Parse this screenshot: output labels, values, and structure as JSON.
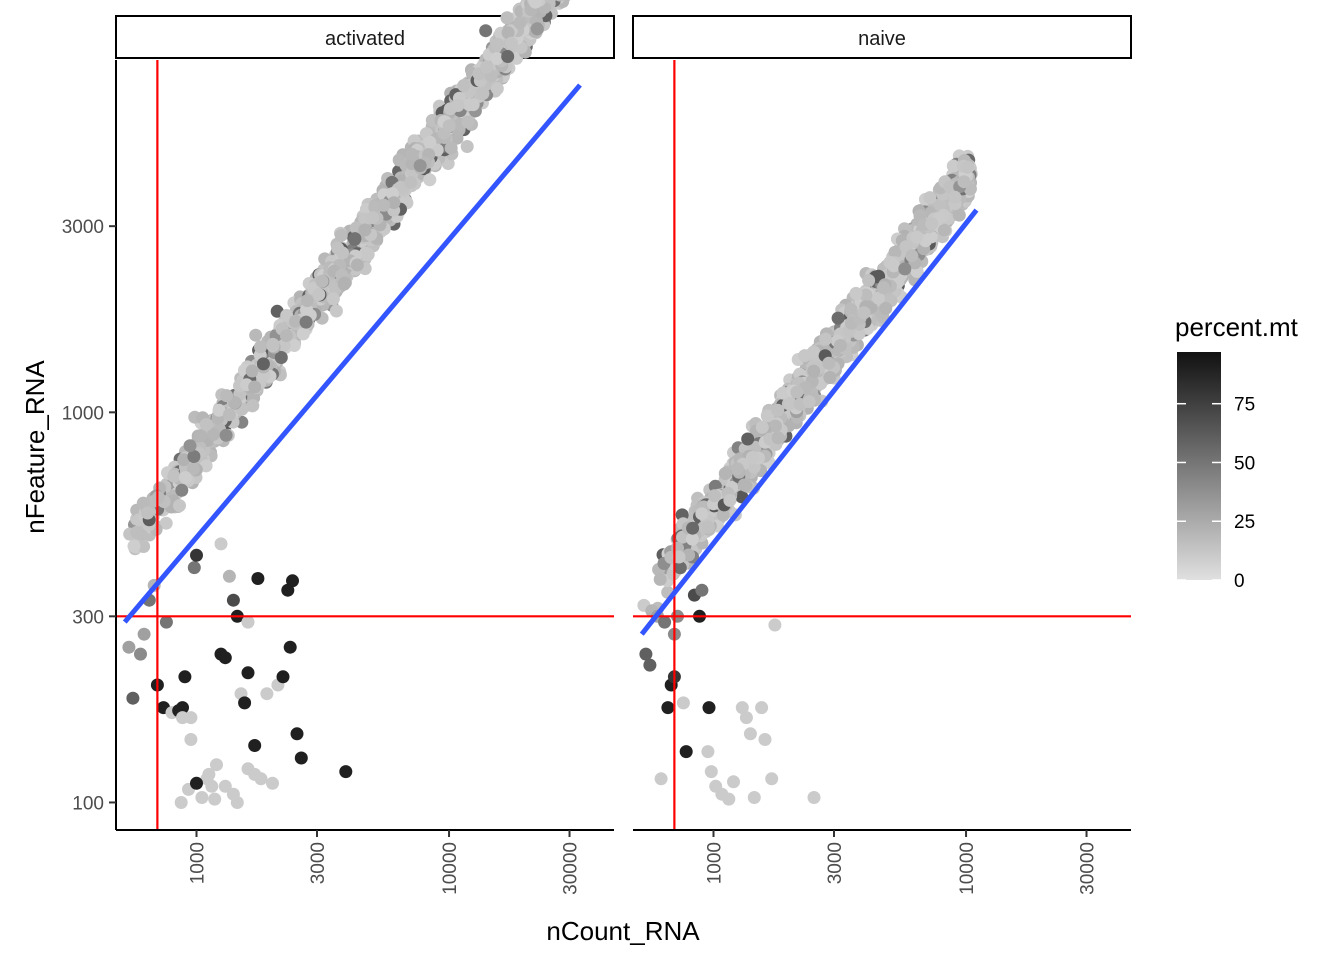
{
  "chart_data": {
    "type": "scatter",
    "title": "",
    "xlabel": "nCount_RNA",
    "ylabel": "nFeature_RNA",
    "x_scale": "log10",
    "y_scale": "log10",
    "xlim": [
      480,
      45000
    ],
    "ylim": [
      85,
      8000
    ],
    "x_ticks": [
      1000,
      3000,
      10000,
      30000
    ],
    "x_tick_labels": [
      "1000",
      "3000",
      "10000",
      "30000"
    ],
    "y_ticks": [
      100,
      300,
      1000,
      3000
    ],
    "y_tick_labels": [
      "100",
      "300",
      "1000",
      "3000"
    ],
    "grid": false,
    "threshold_lines": {
      "x": 700,
      "y": 300,
      "color": "#ff0000"
    },
    "trend_color": "#3355ff",
    "legend": {
      "title": "percent.mt",
      "placement": "right",
      "min": 0,
      "max": 97,
      "ticks": [
        0,
        25,
        50,
        75
      ],
      "tick_labels": [
        "0",
        "25",
        "50",
        "75"
      ],
      "color_low": "#e0e0e0",
      "color_high": "#111111"
    },
    "facets": [
      {
        "label": "activated",
        "trend": {
          "x": [
            520,
            33000
          ],
          "y": [
            290,
            6900
          ]
        },
        "band": {
          "x_range": [
            540,
            33000
          ],
          "slope": 0.85,
          "intercept_at_1000": 760,
          "spread": 0.14,
          "count": 1800
        },
        "outliers": [
          [
            540,
            250,
            30
          ],
          [
            560,
            185,
            60
          ],
          [
            600,
            240,
            40
          ],
          [
            620,
            270,
            30
          ],
          [
            650,
            330,
            50
          ],
          [
            680,
            360,
            20
          ],
          [
            700,
            200,
            90
          ],
          [
            740,
            175,
            90
          ],
          [
            760,
            290,
            50
          ],
          [
            800,
            170,
            10
          ],
          [
            850,
            172,
            90
          ],
          [
            880,
            175,
            90
          ],
          [
            880,
            165,
            10
          ],
          [
            900,
            210,
            90
          ],
          [
            950,
            165,
            10
          ],
          [
            950,
            145,
            10
          ],
          [
            980,
            400,
            50
          ],
          [
            1000,
            430,
            80
          ],
          [
            1100,
            115,
            10
          ],
          [
            1150,
            110,
            10
          ],
          [
            1200,
            125,
            10
          ],
          [
            1250,
            240,
            90
          ],
          [
            1300,
            235,
            90
          ],
          [
            1350,
            380,
            20
          ],
          [
            1400,
            330,
            70
          ],
          [
            1450,
            300,
            90
          ],
          [
            1500,
            190,
            10
          ],
          [
            1550,
            180,
            90
          ],
          [
            1600,
            215,
            90
          ],
          [
            1700,
            140,
            90
          ],
          [
            1750,
            375,
            90
          ],
          [
            1800,
            115,
            10
          ],
          [
            1900,
            190,
            10
          ],
          [
            2100,
            200,
            10
          ],
          [
            2200,
            210,
            90
          ],
          [
            2300,
            350,
            90
          ],
          [
            2350,
            250,
            90
          ],
          [
            2400,
            370,
            90
          ],
          [
            2500,
            150,
            90
          ],
          [
            2600,
            130,
            90
          ],
          [
            3900,
            120,
            90
          ],
          [
            870,
            100,
            10
          ],
          [
            930,
            108,
            10
          ],
          [
            1000,
            112,
            90
          ],
          [
            1050,
            103,
            10
          ],
          [
            1120,
            118,
            10
          ],
          [
            1180,
            102,
            10
          ],
          [
            1300,
            110,
            10
          ],
          [
            1400,
            105,
            10
          ],
          [
            1450,
            100,
            10
          ],
          [
            1600,
            122,
            10
          ],
          [
            1700,
            118,
            10
          ],
          [
            2000,
            112,
            10
          ],
          [
            1250,
            460,
            10
          ],
          [
            1600,
            290,
            10
          ]
        ]
      },
      {
        "label": "naive",
        "trend": {
          "x": [
            520,
            11000
          ],
          "y": [
            270,
            3300
          ]
        },
        "band": {
          "x_range": [
            600,
            10500
          ],
          "slope": 0.84,
          "intercept_at_1000": 560,
          "spread": 0.12,
          "count": 1500
        },
        "outliers": [
          [
            530,
            320,
            10
          ],
          [
            540,
            240,
            60
          ],
          [
            560,
            225,
            60
          ],
          [
            570,
            310,
            20
          ],
          [
            600,
            300,
            30
          ],
          [
            620,
            115,
            10
          ],
          [
            640,
            290,
            50
          ],
          [
            660,
            175,
            90
          ],
          [
            680,
            200,
            90
          ],
          [
            700,
            210,
            80
          ],
          [
            700,
            270,
            40
          ],
          [
            720,
            300,
            40
          ],
          [
            760,
            180,
            10
          ],
          [
            780,
            135,
            90
          ],
          [
            840,
            340,
            70
          ],
          [
            880,
            300,
            90
          ],
          [
            900,
            350,
            50
          ],
          [
            960,
            175,
            90
          ],
          [
            950,
            135,
            10
          ],
          [
            980,
            120,
            10
          ],
          [
            1020,
            110,
            10
          ],
          [
            1080,
            105,
            10
          ],
          [
            1150,
            102,
            10
          ],
          [
            1200,
            113,
            10
          ],
          [
            1300,
            175,
            10
          ],
          [
            1350,
            165,
            10
          ],
          [
            1400,
            150,
            10
          ],
          [
            1450,
            103,
            10
          ],
          [
            1550,
            175,
            10
          ],
          [
            1600,
            145,
            10
          ],
          [
            1700,
            115,
            10
          ],
          [
            1750,
            285,
            10
          ],
          [
            2500,
            103,
            10
          ]
        ]
      }
    ]
  }
}
